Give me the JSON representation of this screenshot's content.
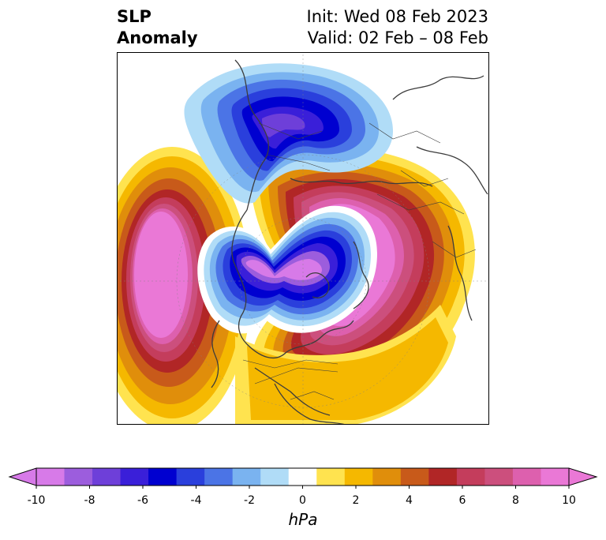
{
  "title": {
    "left_lines": [
      "SLP",
      "Anomaly"
    ],
    "right_lines": [
      "Init: Wed 08 Feb 2023",
      "Valid: 02 Feb – 08 Feb"
    ]
  },
  "map": {
    "projection": "north-polar-stereographic",
    "field": "sea level pressure anomaly",
    "features": [
      {
        "name": "negative-anomaly-north-america",
        "sign": "negative",
        "approx_min": -9
      },
      {
        "name": "negative-anomaly-arctic-ring",
        "sign": "negative",
        "approx_min": -10
      },
      {
        "name": "positive-anomaly-north-pacific",
        "sign": "positive",
        "approx_max": 10
      },
      {
        "name": "positive-anomaly-eurasia-arctic",
        "sign": "positive",
        "approx_max": 10
      },
      {
        "name": "positive-anomaly-north-atlantic",
        "sign": "positive",
        "approx_max": 8
      }
    ]
  },
  "colorbar": {
    "unit": "hPa",
    "ticks": [
      "-10",
      "-8",
      "-6",
      "-4",
      "-2",
      "0",
      "2",
      "4",
      "6",
      "8",
      "10"
    ],
    "colors": [
      "#d77ae8",
      "#9c5ddd",
      "#6e3fd9",
      "#3a1fd9",
      "#0000d0",
      "#2a3fdc",
      "#4b74e6",
      "#7ab3f0",
      "#b0dcf7",
      "#ffffff",
      "#ffe34f",
      "#f5b800",
      "#e08e0b",
      "#c85a1a",
      "#b12626",
      "#c43d5c",
      "#cc4f7d",
      "#dd60ae",
      "#ea78d6"
    ],
    "extend_low_color": "#d77ae8",
    "extend_high_color": "#ea78d6"
  }
}
